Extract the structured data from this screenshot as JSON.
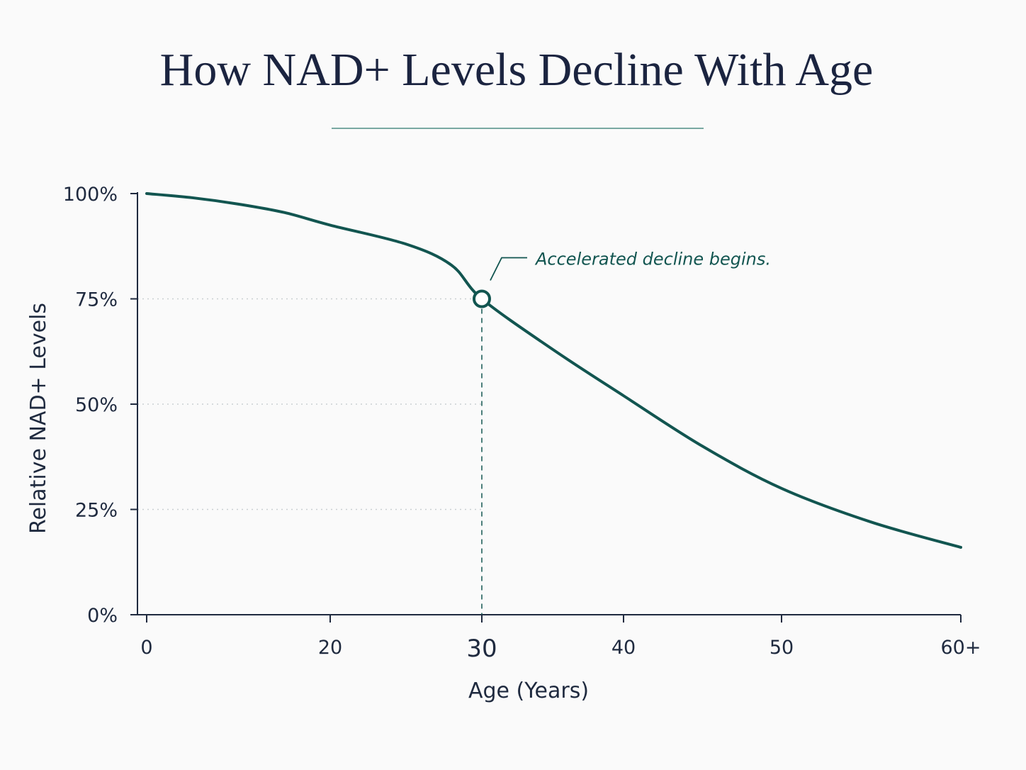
{
  "colors": {
    "line": "#125550",
    "accent": "#125550",
    "axis": "#1f2a3f",
    "text": "#1f2a3f",
    "title": "#1b2440",
    "grid": "#c9cfd2",
    "background": "#fafafa"
  },
  "chart_data": {
    "type": "line",
    "title": "How NAD+ Levels Decline With Age",
    "xlabel": "Age (Years)",
    "ylabel": "Relative NAD+ Levels",
    "xlim": [
      0,
      60
    ],
    "ylim": [
      0,
      100
    ],
    "x_ticks": [
      {
        "value": 0,
        "label": "0"
      },
      {
        "value": 20,
        "label": "20"
      },
      {
        "value": 30,
        "label": "30",
        "highlight": true
      },
      {
        "value": 40,
        "label": "40"
      },
      {
        "value": 50,
        "label": "50"
      },
      {
        "value": 60,
        "label": "60+"
      }
    ],
    "y_ticks": [
      {
        "value": 0,
        "label": "0%"
      },
      {
        "value": 25,
        "label": "25%"
      },
      {
        "value": 50,
        "label": "50%"
      },
      {
        "value": 75,
        "label": "75%"
      },
      {
        "value": 100,
        "label": "100%"
      }
    ],
    "gridlines": [
      25,
      50,
      75
    ],
    "grid_style": "dotted, to highlighted point only",
    "series": [
      {
        "points": [
          {
            "x": 0,
            "y": 100
          },
          {
            "x": 5,
            "y": 99
          },
          {
            "x": 10,
            "y": 97.5
          },
          {
            "x": 15,
            "y": 95.5
          },
          {
            "x": 20,
            "y": 92.5
          },
          {
            "x": 25,
            "y": 88
          },
          {
            "x": 28,
            "y": 83
          },
          {
            "x": 30,
            "y": 75
          },
          {
            "x": 35,
            "y": 63
          },
          {
            "x": 40,
            "y": 52
          },
          {
            "x": 45,
            "y": 40
          },
          {
            "x": 50,
            "y": 30
          },
          {
            "x": 55,
            "y": 22
          },
          {
            "x": 60,
            "y": 16
          }
        ]
      }
    ],
    "highlight": {
      "x": 30,
      "y": 75
    },
    "annotation": {
      "text": "Accelerated decline begins.",
      "x": 30,
      "y": 75
    }
  }
}
